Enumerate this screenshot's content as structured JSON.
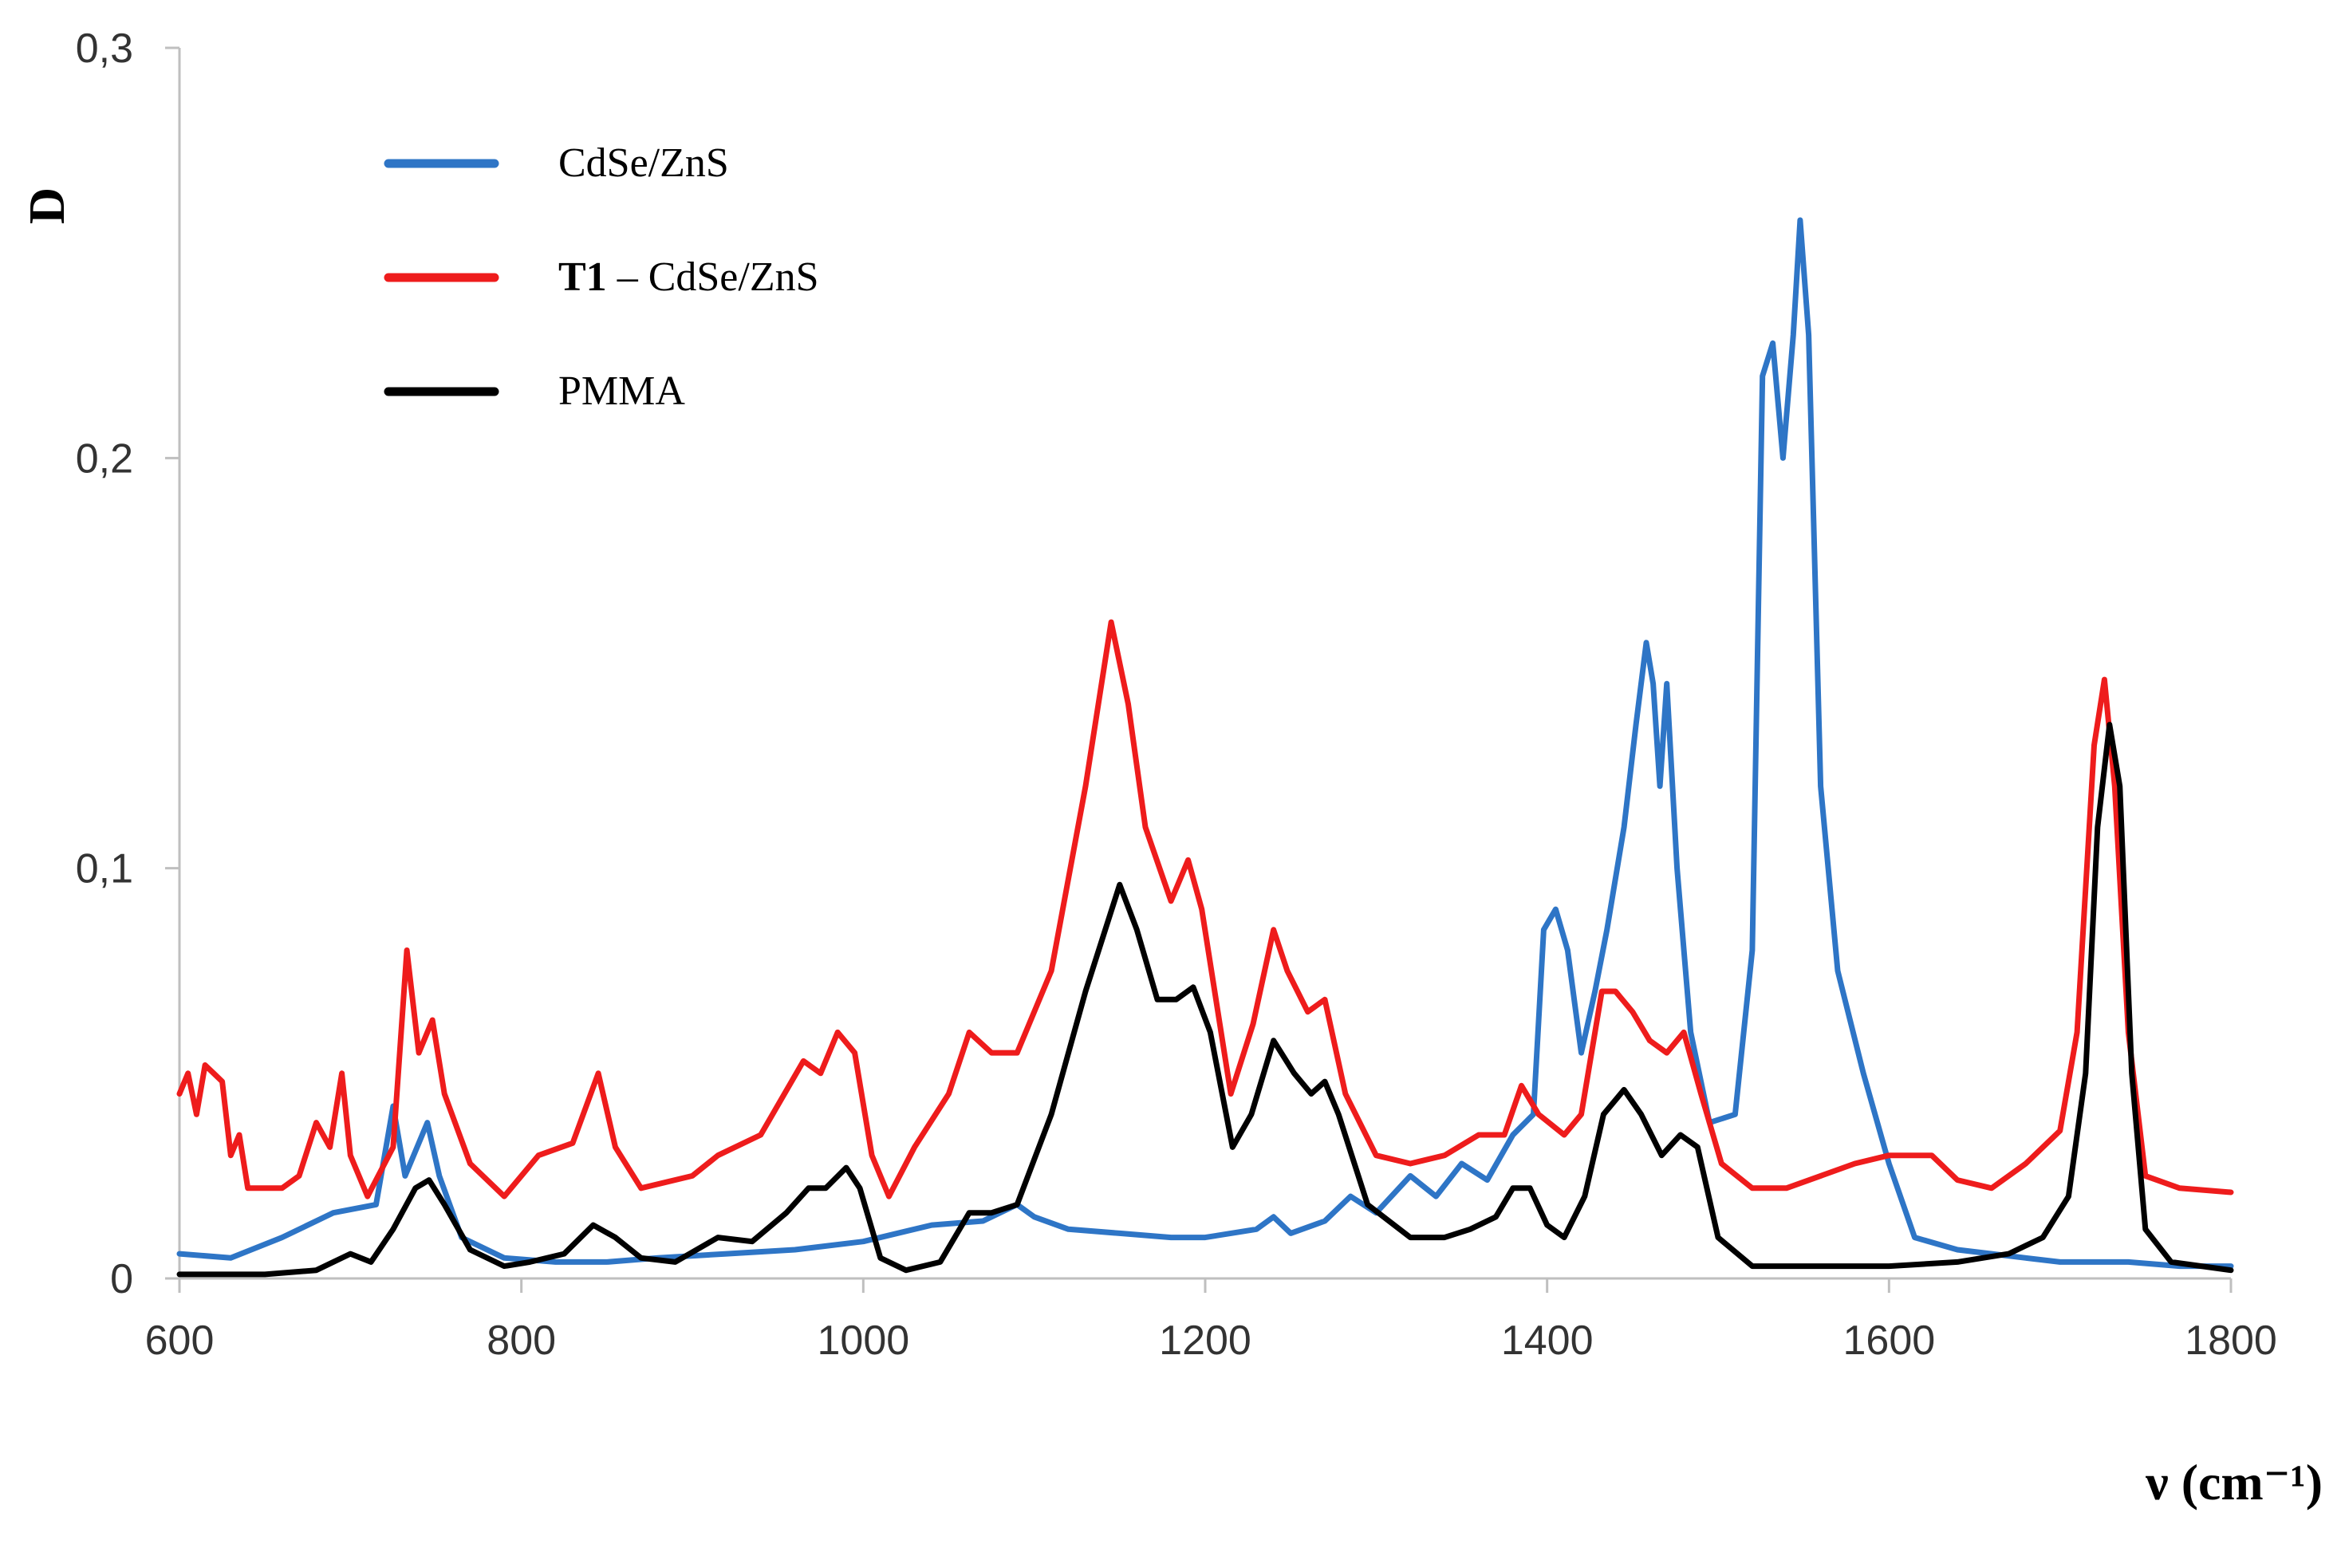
{
  "chart_data": {
    "type": "line",
    "title": "",
    "xlabel": "ν (cm⁻¹)",
    "ylabel": "D",
    "xlim": [
      600,
      1800
    ],
    "ylim": [
      0,
      0.3
    ],
    "x_ticks": [
      {
        "value": 600,
        "label": "600"
      },
      {
        "value": 800,
        "label": "800"
      },
      {
        "value": 1000,
        "label": "1000"
      },
      {
        "value": 1200,
        "label": "1200"
      },
      {
        "value": 1400,
        "label": "1400"
      },
      {
        "value": 1600,
        "label": "1600"
      },
      {
        "value": 1800,
        "label": "1800"
      }
    ],
    "y_ticks": [
      {
        "value": 0,
        "label": "0"
      },
      {
        "value": 0.1,
        "label": "0,1"
      },
      {
        "value": 0.2,
        "label": "0,2"
      },
      {
        "value": 0.3,
        "label": "0,3"
      }
    ],
    "grid": false,
    "legend_position": "top-left",
    "series": [
      {
        "name": "CdSe/ZnS",
        "legend_bold": "",
        "legend_rest": "CdSe/ZnS",
        "color": "#2e75c6",
        "points": [
          [
            600,
            0.006
          ],
          [
            630,
            0.005
          ],
          [
            660,
            0.01
          ],
          [
            690,
            0.016
          ],
          [
            715,
            0.018
          ],
          [
            725,
            0.042
          ],
          [
            732,
            0.025
          ],
          [
            745,
            0.038
          ],
          [
            752,
            0.025
          ],
          [
            765,
            0.01
          ],
          [
            790,
            0.005
          ],
          [
            820,
            0.004
          ],
          [
            850,
            0.004
          ],
          [
            880,
            0.005
          ],
          [
            920,
            0.006
          ],
          [
            960,
            0.007
          ],
          [
            1000,
            0.009
          ],
          [
            1040,
            0.013
          ],
          [
            1070,
            0.014
          ],
          [
            1090,
            0.018
          ],
          [
            1100,
            0.015
          ],
          [
            1120,
            0.012
          ],
          [
            1150,
            0.011
          ],
          [
            1180,
            0.01
          ],
          [
            1200,
            0.01
          ],
          [
            1230,
            0.012
          ],
          [
            1240,
            0.015
          ],
          [
            1250,
            0.011
          ],
          [
            1270,
            0.014
          ],
          [
            1285,
            0.02
          ],
          [
            1300,
            0.016
          ],
          [
            1320,
            0.025
          ],
          [
            1335,
            0.02
          ],
          [
            1350,
            0.028
          ],
          [
            1365,
            0.024
          ],
          [
            1380,
            0.035
          ],
          [
            1392,
            0.04
          ],
          [
            1398,
            0.085
          ],
          [
            1405,
            0.09
          ],
          [
            1412,
            0.08
          ],
          [
            1420,
            0.055
          ],
          [
            1428,
            0.07
          ],
          [
            1435,
            0.085
          ],
          [
            1445,
            0.11
          ],
          [
            1452,
            0.135
          ],
          [
            1458,
            0.155
          ],
          [
            1462,
            0.145
          ],
          [
            1466,
            0.12
          ],
          [
            1470,
            0.145
          ],
          [
            1476,
            0.1
          ],
          [
            1484,
            0.06
          ],
          [
            1495,
            0.038
          ],
          [
            1510,
            0.04
          ],
          [
            1520,
            0.08
          ],
          [
            1526,
            0.22
          ],
          [
            1532,
            0.228
          ],
          [
            1538,
            0.2
          ],
          [
            1544,
            0.23
          ],
          [
            1548,
            0.258
          ],
          [
            1553,
            0.23
          ],
          [
            1560,
            0.12
          ],
          [
            1570,
            0.075
          ],
          [
            1585,
            0.05
          ],
          [
            1600,
            0.028
          ],
          [
            1615,
            0.01
          ],
          [
            1640,
            0.007
          ],
          [
            1660,
            0.006
          ],
          [
            1680,
            0.005
          ],
          [
            1700,
            0.004
          ],
          [
            1740,
            0.004
          ],
          [
            1770,
            0.003
          ],
          [
            1800,
            0.003
          ]
        ]
      },
      {
        "name": "T1 – CdSe/ZnS",
        "legend_bold": "T1",
        "legend_rest": " – CdSe/ZnS",
        "color": "#ee1c1c",
        "points": [
          [
            600,
            0.045
          ],
          [
            605,
            0.05
          ],
          [
            610,
            0.04
          ],
          [
            615,
            0.052
          ],
          [
            620,
            0.05
          ],
          [
            625,
            0.048
          ],
          [
            630,
            0.03
          ],
          [
            635,
            0.035
          ],
          [
            640,
            0.022
          ],
          [
            660,
            0.022
          ],
          [
            670,
            0.025
          ],
          [
            680,
            0.038
          ],
          [
            688,
            0.032
          ],
          [
            695,
            0.05
          ],
          [
            700,
            0.03
          ],
          [
            710,
            0.02
          ],
          [
            725,
            0.032
          ],
          [
            733,
            0.08
          ],
          [
            740,
            0.055
          ],
          [
            748,
            0.063
          ],
          [
            755,
            0.045
          ],
          [
            770,
            0.028
          ],
          [
            790,
            0.02
          ],
          [
            810,
            0.03
          ],
          [
            830,
            0.033
          ],
          [
            845,
            0.05
          ],
          [
            855,
            0.032
          ],
          [
            870,
            0.022
          ],
          [
            900,
            0.025
          ],
          [
            915,
            0.03
          ],
          [
            940,
            0.035
          ],
          [
            965,
            0.053
          ],
          [
            975,
            0.05
          ],
          [
            985,
            0.06
          ],
          [
            995,
            0.055
          ],
          [
            1005,
            0.03
          ],
          [
            1015,
            0.02
          ],
          [
            1030,
            0.032
          ],
          [
            1050,
            0.045
          ],
          [
            1062,
            0.06
          ],
          [
            1075,
            0.055
          ],
          [
            1090,
            0.055
          ],
          [
            1110,
            0.075
          ],
          [
            1130,
            0.12
          ],
          [
            1145,
            0.16
          ],
          [
            1155,
            0.14
          ],
          [
            1165,
            0.11
          ],
          [
            1180,
            0.092
          ],
          [
            1190,
            0.102
          ],
          [
            1198,
            0.09
          ],
          [
            1215,
            0.045
          ],
          [
            1228,
            0.062
          ],
          [
            1240,
            0.085
          ],
          [
            1248,
            0.075
          ],
          [
            1260,
            0.065
          ],
          [
            1270,
            0.068
          ],
          [
            1282,
            0.045
          ],
          [
            1300,
            0.03
          ],
          [
            1320,
            0.028
          ],
          [
            1340,
            0.03
          ],
          [
            1360,
            0.035
          ],
          [
            1375,
            0.035
          ],
          [
            1385,
            0.047
          ],
          [
            1395,
            0.04
          ],
          [
            1410,
            0.035
          ],
          [
            1420,
            0.04
          ],
          [
            1432,
            0.07
          ],
          [
            1440,
            0.07
          ],
          [
            1450,
            0.065
          ],
          [
            1460,
            0.058
          ],
          [
            1470,
            0.055
          ],
          [
            1480,
            0.06
          ],
          [
            1490,
            0.045
          ],
          [
            1502,
            0.028
          ],
          [
            1520,
            0.022
          ],
          [
            1540,
            0.022
          ],
          [
            1560,
            0.025
          ],
          [
            1580,
            0.028
          ],
          [
            1600,
            0.03
          ],
          [
            1625,
            0.03
          ],
          [
            1640,
            0.024
          ],
          [
            1660,
            0.022
          ],
          [
            1680,
            0.028
          ],
          [
            1700,
            0.036
          ],
          [
            1710,
            0.06
          ],
          [
            1720,
            0.13
          ],
          [
            1726,
            0.146
          ],
          [
            1732,
            0.12
          ],
          [
            1740,
            0.06
          ],
          [
            1750,
            0.025
          ],
          [
            1770,
            0.022
          ],
          [
            1800,
            0.021
          ]
        ]
      },
      {
        "name": "PMMA",
        "legend_bold": "",
        "legend_rest": "PMMA",
        "color": "#000000",
        "points": [
          [
            600,
            0.001
          ],
          [
            650,
            0.001
          ],
          [
            680,
            0.002
          ],
          [
            700,
            0.006
          ],
          [
            712,
            0.004
          ],
          [
            725,
            0.012
          ],
          [
            738,
            0.022
          ],
          [
            746,
            0.024
          ],
          [
            755,
            0.018
          ],
          [
            770,
            0.007
          ],
          [
            790,
            0.003
          ],
          [
            805,
            0.004
          ],
          [
            825,
            0.006
          ],
          [
            842,
            0.013
          ],
          [
            855,
            0.01
          ],
          [
            870,
            0.005
          ],
          [
            890,
            0.004
          ],
          [
            915,
            0.01
          ],
          [
            935,
            0.009
          ],
          [
            955,
            0.016
          ],
          [
            968,
            0.022
          ],
          [
            978,
            0.022
          ],
          [
            990,
            0.027
          ],
          [
            998,
            0.022
          ],
          [
            1010,
            0.005
          ],
          [
            1025,
            0.002
          ],
          [
            1045,
            0.004
          ],
          [
            1062,
            0.016
          ],
          [
            1075,
            0.016
          ],
          [
            1090,
            0.018
          ],
          [
            1110,
            0.04
          ],
          [
            1130,
            0.07
          ],
          [
            1150,
            0.096
          ],
          [
            1160,
            0.085
          ],
          [
            1172,
            0.068
          ],
          [
            1183,
            0.068
          ],
          [
            1193,
            0.071
          ],
          [
            1203,
            0.06
          ],
          [
            1216,
            0.032
          ],
          [
            1227,
            0.04
          ],
          [
            1240,
            0.058
          ],
          [
            1252,
            0.05
          ],
          [
            1262,
            0.045
          ],
          [
            1270,
            0.048
          ],
          [
            1278,
            0.04
          ],
          [
            1295,
            0.018
          ],
          [
            1320,
            0.01
          ],
          [
            1340,
            0.01
          ],
          [
            1355,
            0.012
          ],
          [
            1370,
            0.015
          ],
          [
            1380,
            0.022
          ],
          [
            1390,
            0.022
          ],
          [
            1400,
            0.013
          ],
          [
            1410,
            0.01
          ],
          [
            1422,
            0.02
          ],
          [
            1433,
            0.04
          ],
          [
            1445,
            0.046
          ],
          [
            1455,
            0.04
          ],
          [
            1467,
            0.03
          ],
          [
            1478,
            0.035
          ],
          [
            1488,
            0.032
          ],
          [
            1500,
            0.01
          ],
          [
            1520,
            0.003
          ],
          [
            1550,
            0.003
          ],
          [
            1600,
            0.003
          ],
          [
            1640,
            0.004
          ],
          [
            1670,
            0.006
          ],
          [
            1690,
            0.01
          ],
          [
            1705,
            0.02
          ],
          [
            1715,
            0.05
          ],
          [
            1722,
            0.11
          ],
          [
            1729,
            0.135
          ],
          [
            1735,
            0.12
          ],
          [
            1742,
            0.05
          ],
          [
            1750,
            0.012
          ],
          [
            1765,
            0.004
          ],
          [
            1800,
            0.002
          ]
        ]
      }
    ]
  }
}
